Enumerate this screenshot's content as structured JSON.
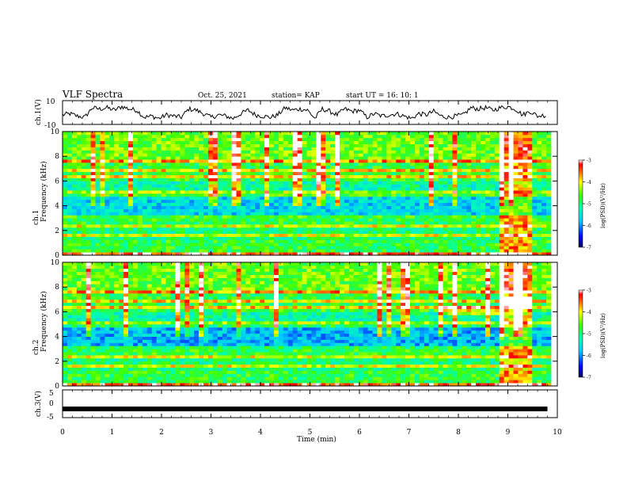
{
  "header": {
    "title": "VLF Spectra",
    "date": "Oct. 25, 2021",
    "station": "station= KAP",
    "start": "start  UT =   16: 10: 1"
  },
  "colorbar_label": "log(PSD)(V²/Hz)",
  "colorbar_ticks": [
    "-3",
    "-4",
    "-5",
    "-6",
    "-7"
  ],
  "chart_data": [
    {
      "type": "line",
      "name": "ch1-waveform",
      "ylabel": "ch.1(V)",
      "ylim": [
        -10,
        10
      ],
      "yticks": [
        "10",
        "-10"
      ],
      "x": [
        0.0,
        0.15,
        0.3,
        0.45,
        0.6,
        0.75,
        0.9,
        1.05,
        1.2,
        1.35,
        1.5,
        1.65,
        1.8,
        1.95,
        2.1,
        2.25,
        2.4,
        2.55,
        2.7,
        2.85,
        3.0,
        3.15,
        3.3,
        3.45,
        3.6,
        3.75,
        3.9,
        4.05,
        4.2,
        4.35,
        4.5,
        4.65,
        4.8,
        4.95,
        5.1,
        5.25,
        5.4,
        5.55,
        5.7,
        5.85,
        6.0,
        6.15,
        6.3,
        6.45,
        6.6,
        6.75,
        6.9,
        7.05,
        7.2,
        7.35,
        7.5,
        7.65,
        7.8,
        7.95,
        8.1,
        8.25,
        8.4,
        8.55,
        8.7,
        8.85,
        9.0,
        9.15,
        9.3,
        9.45,
        9.6,
        9.8
      ],
      "values": [
        -2,
        -1,
        -3,
        -4,
        4,
        3,
        4,
        2,
        5,
        3,
        2,
        -4,
        -3,
        -5,
        -2,
        -3,
        -4,
        3,
        2,
        -1,
        -4,
        -2,
        -3,
        -5,
        -1,
        2,
        -2,
        -3,
        -4,
        -2,
        4,
        2,
        3,
        2,
        -5,
        3,
        1,
        -2,
        3,
        1,
        2,
        -4,
        -1,
        -3,
        -2,
        -1,
        -3,
        -5,
        -1,
        -2,
        1,
        -3,
        -4,
        -3,
        -2,
        4,
        3,
        4,
        2,
        4,
        5,
        3,
        -2,
        1,
        -3,
        -2
      ],
      "xlim": [
        0,
        10
      ]
    },
    {
      "type": "heatmap",
      "name": "ch1-spectrogram",
      "ylabel": "ch.1 Frequency (kHz)",
      "xlim": [
        0,
        10
      ],
      "ylim": [
        0,
        10
      ],
      "yticks": [
        "0",
        "2",
        "4",
        "6",
        "8",
        "10"
      ],
      "zlim": [
        -7,
        -3
      ],
      "notes_from_image": "high PSD above ~5 kHz and in narrow bands; low PSD 3-5 kHz; strong broadband burst 8.85-9.45 min"
    },
    {
      "type": "heatmap",
      "name": "ch2-spectrogram",
      "ylabel": "ch.2 Frequency (kHz)",
      "xlim": [
        0,
        10
      ],
      "ylim": [
        0,
        10
      ],
      "yticks": [
        "0",
        "2",
        "4",
        "6",
        "8",
        "10"
      ],
      "zlim": [
        -7,
        -3
      ]
    },
    {
      "type": "line",
      "name": "ch3-waveform",
      "ylabel": "ch.3(V)",
      "ylim": [
        -5,
        5
      ],
      "yticks": [
        "5",
        "0",
        "-5"
      ],
      "x": [
        0,
        9.8
      ],
      "values": [
        -2,
        -2
      ],
      "xlim": [
        0,
        10
      ]
    }
  ],
  "x_axis": {
    "label": "Time (min)",
    "ticks": [
      "0",
      "1",
      "2",
      "3",
      "4",
      "5",
      "6",
      "7",
      "8",
      "9",
      "10"
    ]
  }
}
